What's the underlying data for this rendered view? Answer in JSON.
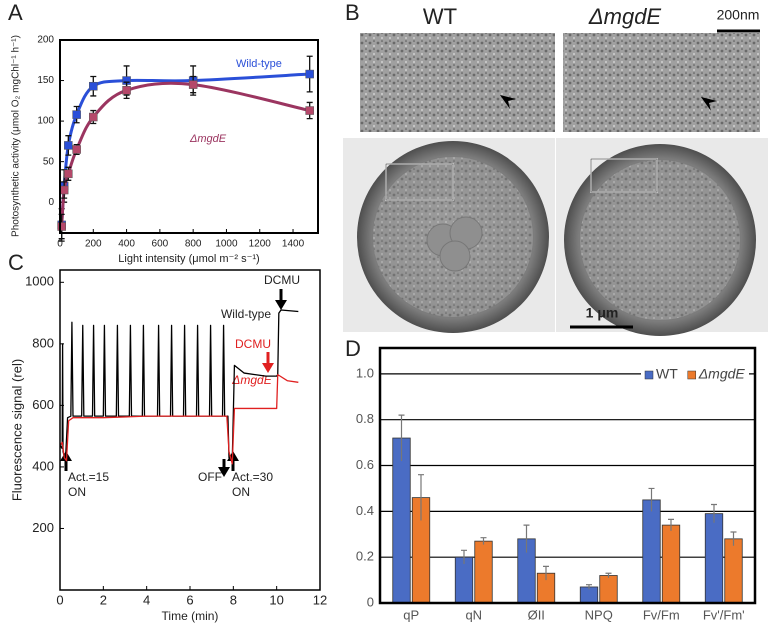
{
  "chart_data": [
    {
      "type": "line",
      "label": "A",
      "ylabel": "Photosynthetic activity (μmol O₂ mgChl⁻¹ h⁻¹)",
      "xlabel": "Light intensity (μmol m⁻² s⁻¹)",
      "xlim": [
        0,
        1550
      ],
      "ylim": [
        -38,
        200
      ],
      "xticks": [
        0,
        200,
        400,
        600,
        800,
        1000,
        1200,
        1400
      ],
      "yticks": [
        0,
        50,
        100,
        150,
        200
      ],
      "smooth": true,
      "markers": true,
      "series": [
        {
          "name": "Wild-type",
          "color": "#2a4fd8",
          "marker_color": "#2a4fd8",
          "x": [
            10,
            25,
            50,
            100,
            200,
            400,
            800,
            1500
          ],
          "values": [
            -28,
            20,
            70,
            108,
            143,
            150,
            150,
            158
          ],
          "errors": [
            20,
            20,
            12,
            10,
            12,
            18,
            18,
            22
          ]
        },
        {
          "name": "ΔmgdE",
          "color": "#9b3560",
          "marker_color": "#b5486a",
          "x": [
            10,
            25,
            50,
            100,
            200,
            400,
            800,
            1500
          ],
          "values": [
            -30,
            15,
            35,
            65,
            105,
            138,
            145,
            113
          ],
          "errors": [
            15,
            10,
            8,
            6,
            8,
            10,
            10,
            10
          ]
        }
      ]
    },
    {
      "type": "line",
      "label": "C",
      "ylabel": "Fluorescence signal (rel)",
      "xlabel": "Time (min)",
      "xlim": [
        0,
        12
      ],
      "ylim": [
        0,
        1040
      ],
      "xticks": [
        0,
        2,
        4,
        6,
        8,
        10,
        12
      ],
      "yticks": [
        200,
        400,
        600,
        800,
        1000
      ],
      "smooth": false,
      "markers": false,
      "annotations": [
        "DCMU",
        "DCMU",
        "Act.=15",
        "ON",
        "OFF",
        "Act.=30",
        "ON"
      ],
      "series": [
        {
          "name": "Wild-type",
          "color": "#000000",
          "x": [
            0,
            0.1,
            0.12,
            0.14,
            0.25,
            0.35,
            0.5,
            0.55,
            0.6,
            1.0,
            1.05,
            1.1,
            1.5,
            1.55,
            1.6,
            2.0,
            2.05,
            2.1,
            2.6,
            2.65,
            2.7,
            3.2,
            3.25,
            3.3,
            3.8,
            3.85,
            3.9,
            4.5,
            4.55,
            4.6,
            5.1,
            5.15,
            5.2,
            5.7,
            5.75,
            5.8,
            6.3,
            6.35,
            6.4,
            6.9,
            6.95,
            7.0,
            7.5,
            7.55,
            7.6,
            7.75,
            7.8,
            7.95,
            8.05,
            8.5,
            9.0,
            9.5,
            10.0,
            10.05,
            10.1,
            10.2,
            11.0
          ],
          "values": [
            470,
            460,
            800,
            450,
            420,
            560,
            565,
            870,
            565,
            565,
            860,
            565,
            565,
            860,
            565,
            565,
            860,
            565,
            565,
            860,
            565,
            565,
            860,
            565,
            565,
            860,
            565,
            565,
            860,
            565,
            565,
            860,
            565,
            565,
            860,
            565,
            565,
            860,
            565,
            565,
            860,
            565,
            565,
            860,
            565,
            565,
            430,
            420,
            730,
            705,
            700,
            695,
            695,
            700,
            900,
            910,
            905
          ]
        },
        {
          "name": "ΔmgdE",
          "color": "#e02020",
          "x": [
            0,
            0.1,
            0.2,
            0.3,
            0.4,
            0.6,
            2,
            4,
            6,
            7.7,
            7.8,
            7.95,
            8.05,
            9,
            10,
            10.05,
            10.5,
            11
          ],
          "values": [
            470,
            480,
            430,
            420,
            550,
            560,
            560,
            565,
            565,
            565,
            450,
            410,
            590,
            590,
            590,
            700,
            680,
            675
          ]
        }
      ]
    },
    {
      "type": "bar",
      "label": "D",
      "categories": [
        "qP",
        "qN",
        "ØII",
        "NPQ",
        "Fv/Fm",
        "Fv'/Fm'"
      ],
      "ylim": [
        0,
        1.113
      ],
      "yticks": [
        0,
        0.2,
        0.4,
        0.6,
        0.8,
        {
          "value": 1,
          "label": "1.0"
        }
      ],
      "grid": true,
      "legend": "upper right",
      "series": [
        {
          "name": "WT",
          "color": "#4a6cc4",
          "values": [
            0.72,
            0.2,
            0.28,
            0.07,
            0.45,
            0.39
          ],
          "errors": [
            0.1,
            0.03,
            0.06,
            0.01,
            0.05,
            0.04
          ]
        },
        {
          "name": "ΔmgdE",
          "color": "#ec7a2c",
          "values": [
            0.46,
            0.27,
            0.13,
            0.12,
            0.34,
            0.28
          ],
          "errors": [
            0.1,
            0.015,
            0.03,
            0.01,
            0.025,
            0.03
          ]
        }
      ]
    }
  ],
  "panel_b": {
    "label": "B",
    "titles": [
      "WT",
      "ΔmgdE"
    ],
    "scale_bars": [
      "200nm",
      "1 μm"
    ]
  }
}
